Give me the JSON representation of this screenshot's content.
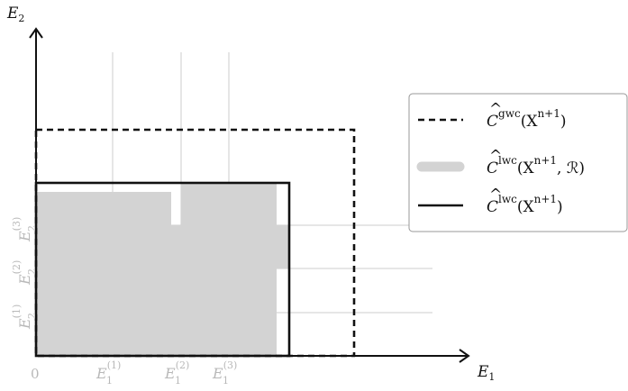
{
  "axes": {
    "x_label_main": "E",
    "x_label_sub": "1",
    "y_label_main": "E",
    "y_label_sub": "2",
    "origin_label": "0"
  },
  "x_ticks": [
    {
      "main": "E",
      "sub": "1",
      "sup": "(1)"
    },
    {
      "main": "E",
      "sub": "1",
      "sup": "(2)"
    },
    {
      "main": "E",
      "sub": "1",
      "sup": "(3)"
    }
  ],
  "y_ticks": [
    {
      "main": "E",
      "sub": "2",
      "sup": "(1)"
    },
    {
      "main": "E",
      "sub": "2",
      "sup": "(2)"
    },
    {
      "main": "E",
      "sub": "2",
      "sup": "(3)"
    }
  ],
  "legend": {
    "items": [
      {
        "style": "dashed",
        "hat": "C",
        "superscript": "gwc",
        "args": "(X",
        "args_sup": "n+1",
        "args_tail": ")"
      },
      {
        "style": "shaded",
        "hat": "C",
        "superscript": "lwc",
        "args": "(X",
        "args_sup": "n+1",
        "args_tail": ", ℛ)"
      },
      {
        "style": "solid",
        "hat": "C",
        "superscript": "lwc",
        "args": "(X",
        "args_sup": "n+1",
        "args_tail": ")"
      }
    ]
  },
  "colors": {
    "region_fill": "#d3d3d3",
    "grid": "#cccccc",
    "tick_text": "#b8b8b8",
    "ink": "#111111",
    "legend_border": "#999999"
  }
}
